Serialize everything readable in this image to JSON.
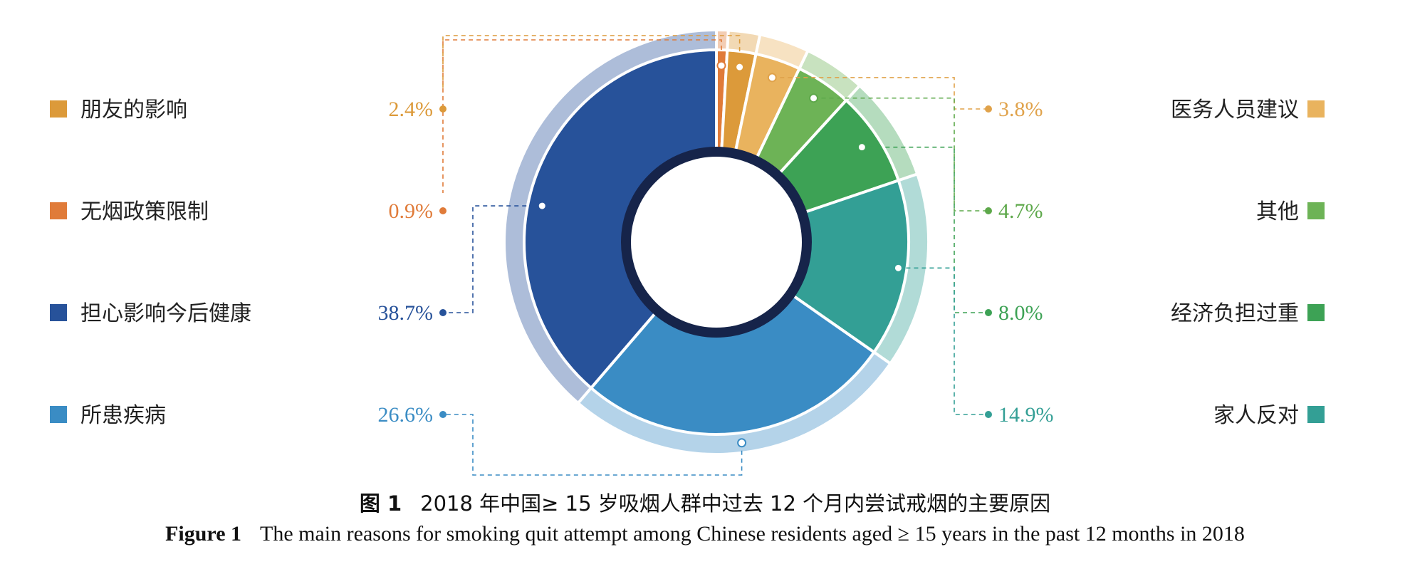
{
  "chart_data": {
    "type": "pie",
    "style": "donut",
    "slices": [
      {
        "label": "无烟政策限制",
        "value": 0.9,
        "value_label": "0.9%",
        "color": "#E07B39",
        "side": "left"
      },
      {
        "label": "朋友的影响",
        "value": 2.4,
        "value_label": "2.4%",
        "color": "#DC9A3A",
        "side": "left"
      },
      {
        "label": "医务人员建议",
        "value": 3.8,
        "value_label": "3.8%",
        "color": "#E9B35E",
        "side": "right"
      },
      {
        "label": "其他",
        "value": 4.7,
        "value_label": "4.7%",
        "color": "#6DB356",
        "side": "right"
      },
      {
        "label": "经济负担过重",
        "value": 8.0,
        "value_label": "8.0%",
        "color": "#3DA255",
        "side": "right"
      },
      {
        "label": "家人反对",
        "value": 14.9,
        "value_label": "14.9%",
        "color": "#339F95",
        "side": "right"
      },
      {
        "label": "所患疾病",
        "value": 26.6,
        "value_label": "26.6%",
        "color": "#3A8CC4",
        "side": "left"
      },
      {
        "label": "担心影响今后健康",
        "value": 38.7,
        "value_label": "38.7%",
        "color": "#27529A",
        "side": "left"
      }
    ],
    "legend_left": [
      "朋友的影响",
      "无烟政策限制",
      "担心影响今后健康",
      "所患疾病"
    ],
    "legend_right": [
      "医务人员建议",
      "其他",
      "经济负担过重",
      "家人反对"
    ]
  },
  "caption": {
    "zh_prefix": "图 1",
    "zh_text": "2018 年中国≥ 15 岁吸烟人群中过去 12 个月内尝试戒烟的主要原因",
    "en_prefix": "Figure 1",
    "en_text": "The main reasons for smoking quit attempt among Chinese residents aged ≥ 15 years in the past 12 months in 2018"
  }
}
